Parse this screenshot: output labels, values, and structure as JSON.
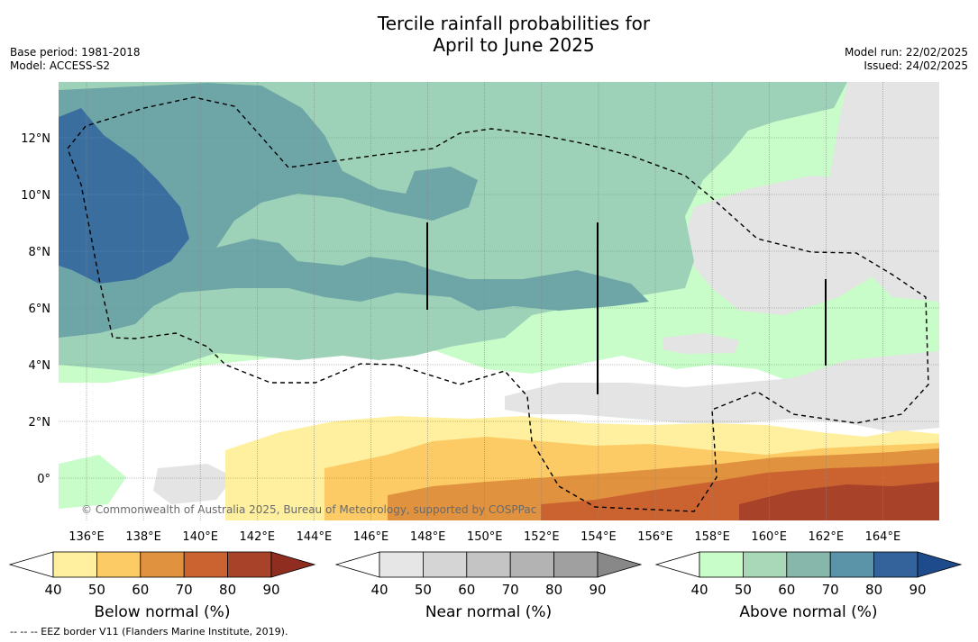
{
  "title": {
    "line1": "Tercile rainfall probabilities for",
    "line2": "April to June 2025"
  },
  "meta": {
    "base_period": "Base period: 1981-2018",
    "model": "Model: ACCESS-S2",
    "model_run": "Model run: 22/02/2025",
    "issued": "Issued: 24/02/2025"
  },
  "map": {
    "copyright": "© Commonwealth of Australia 2025, Bureau of Meteorology, supported by COSPPac",
    "lon_labels": [
      "136°E",
      "138°E",
      "140°E",
      "142°E",
      "144°E",
      "146°E",
      "148°E",
      "150°E",
      "152°E",
      "154°E",
      "156°E",
      "158°E",
      "160°E",
      "162°E",
      "164°E"
    ],
    "lat_labels": [
      "12°N",
      "10°N",
      "8°N",
      "6°N",
      "4°N",
      "2°N",
      "0°"
    ],
    "colors": {
      "below": [
        "#fff0a0",
        "#fdcb66",
        "#e0923f",
        "#cb6331",
        "#a8432a",
        "#8f2e20"
      ],
      "near": [
        "#e4e4e4",
        "#d5d5d5",
        "#c6c6c6",
        "#b4b4b4",
        "#a1a1a1",
        "#8a8a8a"
      ],
      "above": [
        "#c8fcc8",
        "#9ed2b8",
        "#86b7aa",
        "#5f9ca6",
        "#3a6fa0",
        "#1f4a8a"
      ],
      "ocean_white": "#ffffff"
    }
  },
  "colorbars": [
    {
      "label": "Below normal (%)",
      "ticks": [
        "40",
        "50",
        "60",
        "70",
        "80",
        "90"
      ],
      "colors": [
        "#fff0a0",
        "#fdcb66",
        "#e0923f",
        "#cb6331",
        "#a8432a"
      ],
      "over": "#8f2e20"
    },
    {
      "label": "Near normal (%)",
      "ticks": [
        "40",
        "50",
        "60",
        "70",
        "80",
        "90"
      ],
      "colors": [
        "#e6e6e6",
        "#d5d5d5",
        "#c4c4c4",
        "#b3b3b3",
        "#a0a0a0"
      ],
      "over": "#888888"
    },
    {
      "label": "Above normal (%)",
      "ticks": [
        "40",
        "50",
        "60",
        "70",
        "80",
        "90"
      ],
      "colors": [
        "#c8fcc8",
        "#a8d8b8",
        "#86b7aa",
        "#5b94a8",
        "#33639a"
      ],
      "over": "#1d4b8c"
    }
  ],
  "footer": "--  --  -- EEZ border V11 (Flanders Marine Institute, 2019)."
}
